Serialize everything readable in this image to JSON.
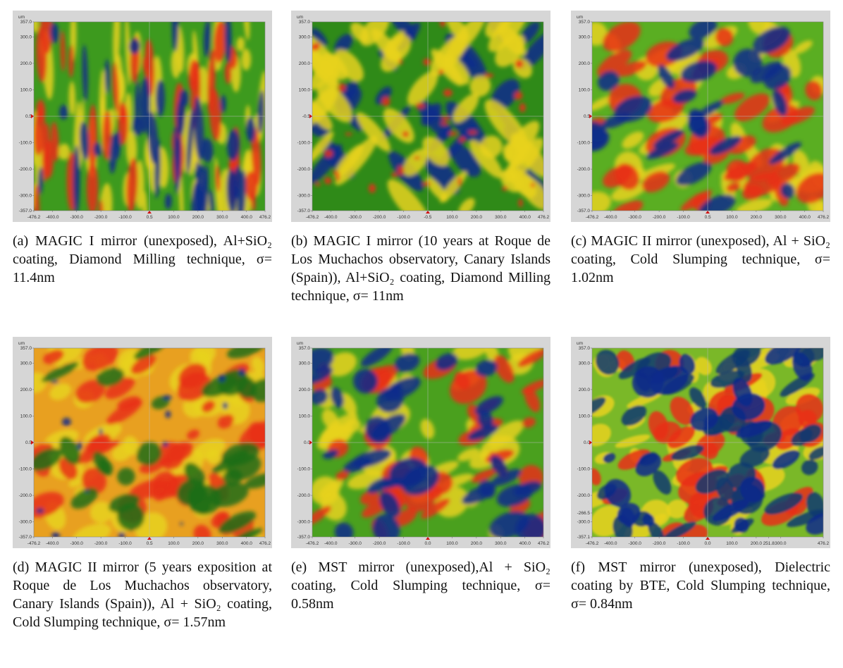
{
  "panels": [
    {
      "um": "um",
      "yticks": [
        "357.0",
        "300.0",
        "200.0",
        "100.0",
        "0.5",
        "-100.0",
        "-200.0",
        "-300.0",
        "-357.0"
      ],
      "xticks": [
        "-476.2",
        "-400.0",
        "-300.0",
        "-200.0",
        "-100.0",
        "0.5",
        "100.0",
        "200.0",
        "300.0",
        "400.0",
        "476.2"
      ],
      "caption": "(a) MAGIC I mirror (unexposed), Al+SiO₂ coating, Diamond Milling technique, σ= 11.4nm"
    },
    {
      "um": "um",
      "yticks": [
        "357.0",
        "300.0",
        "200.0",
        "100.0",
        "-0.5",
        "-100.0",
        "-200.0",
        "-300.0",
        "-357.0"
      ],
      "xticks": [
        "-476.2",
        "-400.0",
        "-300.0",
        "-200.0",
        "-100.0",
        "-0.5",
        "100.0",
        "200.0",
        "300.0",
        "400.0",
        "476.2"
      ],
      "caption": "(b) MAGIC I mirror (10 years at Roque de Los Muchachos observatory, Canary Islands (Spain)), Al+SiO₂ coating, Diamond Milling technique, σ= 11nm"
    },
    {
      "um": "um",
      "yticks": [
        "357.0",
        "300.0",
        "200.0",
        "100.0",
        "0.5",
        "-100.0",
        "-200.0",
        "-300.0",
        "-357.0"
      ],
      "xticks": [
        "-476.2",
        "-400.0",
        "-300.0",
        "-200.0",
        "-100.0",
        "0.5",
        "100.0",
        "200.0",
        "300.0",
        "400.0",
        "476.2"
      ],
      "caption": "(c) MAGIC II mirror (unexposed), Al + SiO₂ coating, Cold Slumping technique, σ= 1.02nm"
    },
    {
      "um": "um",
      "yticks": [
        "357.0",
        "300.0",
        "200.0",
        "100.0",
        "0.5",
        "-100.0",
        "-200.0",
        "-300.0",
        "-357.0"
      ],
      "xticks": [
        "-476.2",
        "-400.0",
        "-300.0",
        "-200.0",
        "-100.0",
        "0.5",
        "100.0",
        "200.0",
        "300.0",
        "400.0",
        "476.2"
      ],
      "caption": "(d) MAGIC II mirror (5 years exposition at Roque de Los Muchachos observatory, Canary Islands (Spain)), Al + SiO₂ coating, Cold Slumping technique, σ= 1.57nm"
    },
    {
      "um": "um",
      "yticks": [
        "357.0",
        "300.0",
        "200.0",
        "100.0",
        "0.0",
        "-100.0",
        "-200.0",
        "-300.0",
        "-357.0"
      ],
      "xticks": [
        "-476.2",
        "-400.0",
        "-300.0",
        "-200.0",
        "-100.0",
        "0.0",
        "100.0",
        "200.0",
        "300.0",
        "400.0",
        "476.2"
      ],
      "caption": "(e) MST mirror (unexposed),Al + SiO₂ coating, Cold Slumping technique, σ= 0.58nm"
    },
    {
      "um": "um",
      "yticks": [
        "357.0",
        "300.0",
        "200.0",
        "100.0",
        "0.0",
        "-100.0",
        "-200.0",
        "-266.5",
        "-300.0",
        "-357.1"
      ],
      "xticks": [
        "-476.2",
        "-400.0",
        "-300.0",
        "-200.0",
        "-100.0",
        "0.0",
        "100.0",
        "200.0",
        "251.8",
        "300.0",
        "476.2"
      ],
      "caption": "(f) MST mirror (unexposed), Dielectric coating by BTE, Cold Slumping technique, σ= 0.84nm"
    }
  ]
}
